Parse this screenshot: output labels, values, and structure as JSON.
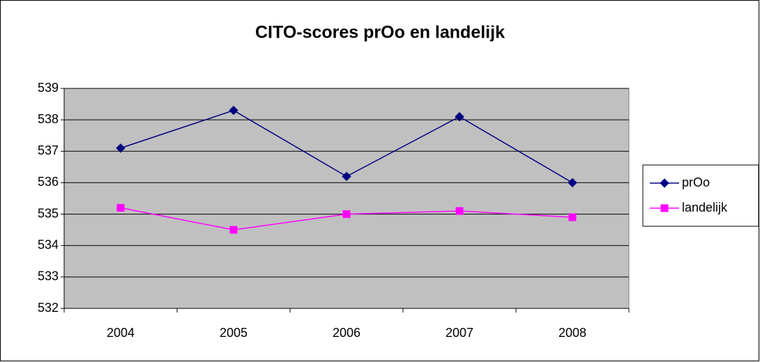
{
  "chart_data": {
    "type": "line",
    "title": "CITO-scores prOo en landelijk",
    "categories": [
      "2004",
      "2005",
      "2006",
      "2007",
      "2008"
    ],
    "series": [
      {
        "name": "prOo",
        "color": "#000080",
        "marker": "diamond",
        "values": [
          537.1,
          538.3,
          536.2,
          538.1,
          536.0
        ]
      },
      {
        "name": "landelijk",
        "color": "#ff00ff",
        "marker": "square",
        "values": [
          535.2,
          534.5,
          535.0,
          535.1,
          534.9
        ]
      }
    ],
    "ylim": [
      532,
      539
    ],
    "yticks": [
      532,
      533,
      534,
      535,
      536,
      537,
      538,
      539
    ],
    "grid": true,
    "legend": "right"
  }
}
